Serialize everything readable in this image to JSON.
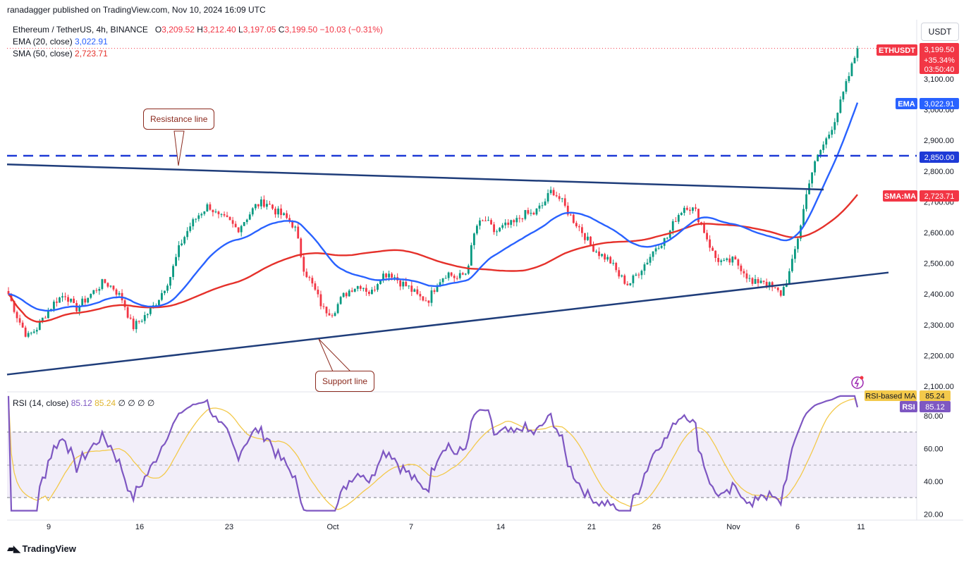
{
  "header": {
    "publisher": "ranadagger published on TradingView.com, Nov 10, 2024 16:09 UTC"
  },
  "legend": {
    "symbol": "Ethereum / TetherUS, 4h, BINANCE",
    "o_label": "O",
    "o": "3,209.52",
    "h_label": "H",
    "h": "3,212.40",
    "l_label": "L",
    "l": "3,197.05",
    "c_label": "C",
    "c": "3,199.50",
    "change": "−10.03 (−0.31%)",
    "ema_label": "EMA (20, close)",
    "ema_value": "3,022.91",
    "sma_label": "SMA (50, close)",
    "sma_value": "2,723.71"
  },
  "rsi_legend": {
    "label": "RSI (14, close)",
    "value": "85.12",
    "ma_value": "85.24",
    "extras": "∅ ∅ ∅ ∅"
  },
  "currency": "USDT",
  "annotations": {
    "resistance": "Resistance line",
    "support": "Support line"
  },
  "price_tags": {
    "symbol": "ETHUSDT",
    "price": "3,199.50",
    "change": "+35.34%",
    "countdown": "03:50:40",
    "ema_label": "EMA",
    "ema": "3,022.91",
    "level_label": "2,850.00",
    "sma_label": "SMA:MA",
    "sma": "2,723.71",
    "rsi_ma_label": "RSI-based MA",
    "rsi_ma": "85.24",
    "rsi_label": "RSI",
    "rsi": "85.12"
  },
  "footer": {
    "brand": "TradingView"
  },
  "colors": {
    "ema": "#2962ff",
    "sma": "#e5312b",
    "rsi": "#7e57c2",
    "rsi_ma": "#f3c94b",
    "up": "#089981",
    "down": "#f23645",
    "trendline": "#1f3d7a",
    "level": "#1e3ad6"
  },
  "chart_data": [
    {
      "type": "candlestick",
      "title": "Ethereum / TetherUS, 4h, BINANCE",
      "x_ticks": [
        "9",
        "16",
        "23",
        "Oct",
        "7",
        "14",
        "21",
        "26",
        "Nov",
        "6",
        "11"
      ],
      "y_ticks": [
        "2,100.00",
        "2,200.00",
        "2,300.00",
        "2,400.00",
        "2,500.00",
        "2,600.00",
        "2,700.00",
        "2,800.00",
        "2,900.00",
        "3,000.00",
        "3,100.00"
      ],
      "ylim": [
        2100,
        3220
      ],
      "grid": false,
      "close_path": [
        2400,
        2320,
        2260,
        2290,
        2340,
        2380,
        2400,
        2350,
        2380,
        2410,
        2440,
        2420,
        2380,
        2290,
        2320,
        2350,
        2400,
        2460,
        2560,
        2620,
        2660,
        2690,
        2650,
        2640,
        2610,
        2650,
        2690,
        2700,
        2670,
        2650,
        2620,
        2480,
        2420,
        2350,
        2340,
        2390,
        2420,
        2430,
        2400,
        2460,
        2470,
        2440,
        2420,
        2390,
        2380,
        2440,
        2470,
        2450,
        2470,
        2620,
        2640,
        2600,
        2620,
        2630,
        2660,
        2660,
        2690,
        2740,
        2700,
        2650,
        2610,
        2560,
        2530,
        2510,
        2460,
        2430,
        2470,
        2510,
        2560,
        2580,
        2650,
        2690,
        2670,
        2600,
        2520,
        2500,
        2510,
        2480,
        2430,
        2450,
        2420,
        2400,
        2480,
        2620,
        2780,
        2860,
        2920,
        3000,
        3100,
        3200
      ],
      "series": [
        {
          "name": "EMA (20, close)",
          "last": 3022.91
        },
        {
          "name": "SMA (50, close)",
          "last": 2723.71
        }
      ],
      "levels": [
        {
          "value": 2850,
          "style": "dashed",
          "label": "Resistance line"
        }
      ],
      "trendlines": [
        {
          "name": "descending",
          "from": 2822,
          "to": 2740
        },
        {
          "name": "ascending",
          "from": 2138,
          "to": 2470,
          "label": "Support line"
        }
      ],
      "last_price": 3199.5
    },
    {
      "type": "line",
      "title": "RSI (14, close)",
      "y_ticks": [
        "20.00",
        "40.00",
        "60.00",
        "80.00"
      ],
      "ylim": [
        20,
        90
      ],
      "bands": [
        30,
        50,
        70
      ],
      "series": [
        {
          "name": "RSI",
          "last": 85.12
        },
        {
          "name": "RSI-based MA",
          "last": 85.24
        }
      ]
    }
  ]
}
